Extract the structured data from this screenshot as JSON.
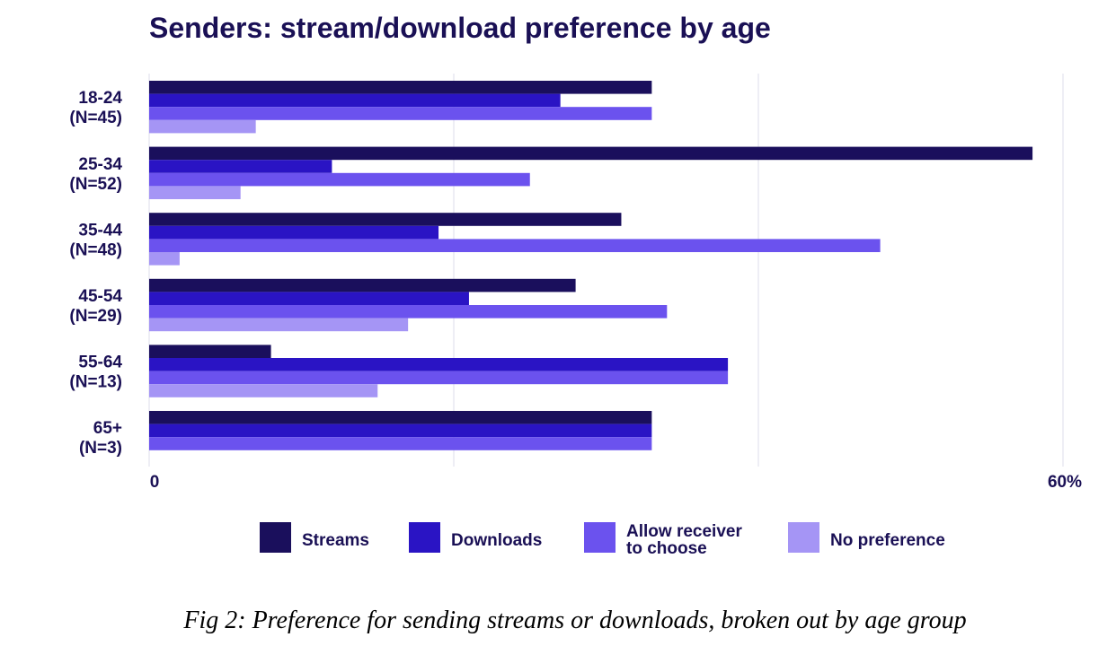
{
  "chart_data": {
    "type": "bar",
    "orientation": "horizontal",
    "title": "Senders: stream/download preference by age",
    "categories": [
      [
        "18-24",
        "(N=45)"
      ],
      [
        "25-34",
        "(N=52)"
      ],
      [
        "35-44",
        "(N=48)"
      ],
      [
        "45-54",
        "(N=29)"
      ],
      [
        "55-64",
        "(N=13)"
      ],
      [
        "65+",
        "(N=3)"
      ]
    ],
    "series": [
      {
        "name": "Streams",
        "color": "#1a0f5c",
        "values": [
          33,
          58,
          31,
          28,
          8,
          33
        ]
      },
      {
        "name": "Downloads",
        "color": "#2a14c4",
        "values": [
          27,
          12,
          19,
          21,
          38,
          33
        ]
      },
      {
        "name": "Allow receiver\nto choose",
        "color": "#6b52ee",
        "values": [
          33,
          25,
          48,
          34,
          38,
          33
        ]
      },
      {
        "name": "No preference",
        "color": "#a595f5",
        "values": [
          7,
          6,
          2,
          17,
          15,
          0
        ]
      }
    ],
    "xlim": [
      0,
      60
    ],
    "xticks": [
      "0",
      "60%"
    ],
    "grid": true,
    "legend_position": "bottom"
  },
  "caption": "Fig 2: Preference for sending streams or downloads, broken out by age group"
}
